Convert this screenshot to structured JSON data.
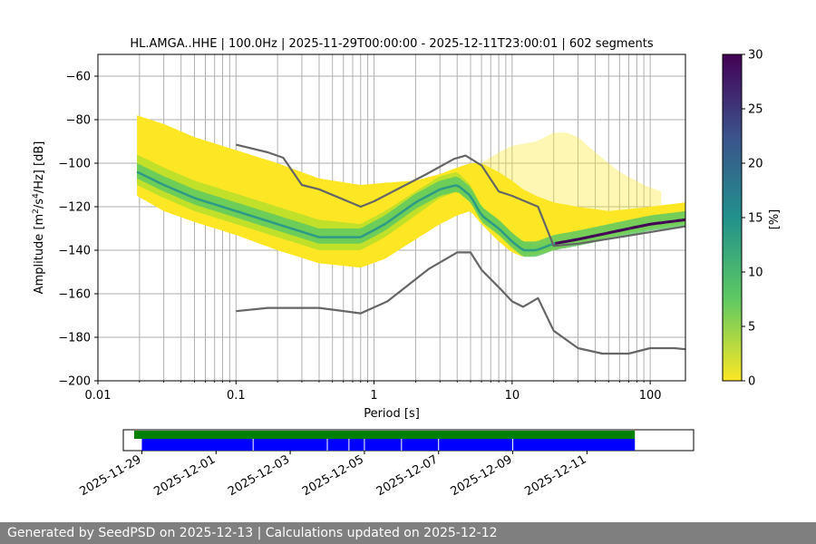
{
  "title": "HL.AMGA..HHE | 100.0Hz | 2025-11-29T00:00:00 - 2025-12-11T23:00:01 | 602 segments",
  "footer": "Generated by SeedPSD on 2025-12-13 | Calculations updated on 2025-12-12",
  "colors": {
    "noise_model": "#666666",
    "grid": "#b0b0b0",
    "availability_green": "#008000",
    "availability_blue": "#0000ff",
    "footer_bg": "#7f7f7f",
    "viridis_r": [
      "#fde725",
      "#5ec962",
      "#21918c",
      "#3b528b",
      "#440154"
    ]
  },
  "chart_data": [
    {
      "type": "heatmap",
      "title": "HL.AMGA..HHE | 100.0Hz | 2025-11-29T00:00:00 - 2025-12-11T23:00:01 | 602 segments",
      "xlabel": "Period [s]",
      "ylabel_main": "Amplitude [m",
      "ylabel_sup1": "2",
      "ylabel_mid": "/s",
      "ylabel_sup2": "4",
      "ylabel_end": "/Hz] [dB]",
      "x_scale": "log",
      "xlim": [
        0.01,
        180
      ],
      "ylim": [
        -200,
        -50
      ],
      "x_ticks": [
        0.01,
        0.1,
        1,
        10,
        100
      ],
      "x_tick_labels": [
        "0.01",
        "0.1",
        "1",
        "10",
        "100"
      ],
      "y_ticks": [
        -200,
        -180,
        -160,
        -140,
        -120,
        -100,
        -80,
        -60
      ],
      "y_tick_labels": [
        "−200",
        "−180",
        "−160",
        "−140",
        "−120",
        "−100",
        "−80",
        "−60"
      ],
      "grid": true,
      "period_x_start": 0.0192,
      "density_band": {
        "period": [
          0.0192,
          0.03,
          0.05,
          0.1,
          0.2,
          0.4,
          0.8,
          1.2,
          2,
          3,
          4,
          5,
          6,
          8,
          10,
          12,
          15,
          20,
          30,
          50,
          100,
          180
        ],
        "outer_upper": [
          -78,
          -82,
          -88,
          -94,
          -100,
          -107,
          -110,
          -109,
          -108,
          -105,
          -102,
          -100,
          -100,
          -104,
          -108,
          -112,
          -115,
          -118,
          -120,
          -122,
          -120,
          -118
        ],
        "outer_lower": [
          -115,
          -122,
          -127,
          -133,
          -140,
          -146,
          -148,
          -144,
          -135,
          -128,
          -124,
          -122,
          -128,
          -136,
          -141,
          -143,
          -142,
          -140,
          -137,
          -134,
          -130,
          -128
        ],
        "core_upper": [
          -96,
          -102,
          -108,
          -114,
          -120,
          -126,
          -128,
          -122,
          -113,
          -106,
          -104,
          -110,
          -120,
          -126,
          -132,
          -136,
          -138,
          -136,
          -134,
          -131,
          -127,
          -125
        ],
        "core_lower": [
          -110,
          -116,
          -122,
          -128,
          -134,
          -140,
          -140,
          -134,
          -124,
          -116,
          -113,
          -118,
          -126,
          -132,
          -138,
          -142,
          -141,
          -139,
          -136,
          -133,
          -129,
          -127
        ],
        "mode_line": [
          -104,
          -110,
          -116,
          -122,
          -128,
          -134,
          -134,
          -128,
          -118,
          -112,
          -110,
          -115,
          -124,
          -130,
          -136,
          -140,
          -140,
          -137,
          -135,
          -132,
          -128,
          -126
        ]
      },
      "scatter_cloud": {
        "period": [
          6,
          8,
          10,
          15,
          20,
          25,
          30,
          40,
          60,
          90,
          120
        ],
        "upper": [
          -100,
          -95,
          -92,
          -90,
          -86,
          -86,
          -88,
          -95,
          -104,
          -110,
          -113
        ]
      },
      "series": [
        {
          "period": [
            0.1,
            0.17,
            0.22,
            0.3,
            0.4,
            0.8,
            1,
            2.4,
            3.8,
            4.6,
            6,
            8,
            10,
            15.4,
            20,
            30,
            60,
            180
          ],
          "values": [
            -91.5,
            -95,
            -97.5,
            -110,
            -112,
            -120,
            -117.5,
            -105,
            -98,
            -96.5,
            -101,
            -113,
            -115,
            -120,
            -138,
            -137,
            -134,
            -129
          ]
        },
        {
          "period": [
            0.1,
            0.17,
            0.4,
            0.8,
            1.25,
            2.5,
            4,
            5,
            6,
            8,
            10,
            12,
            15.4,
            20,
            30,
            45,
            70,
            100,
            150,
            180
          ],
          "values": [
            -168,
            -166.5,
            -166.5,
            -169,
            -163.5,
            -148.5,
            -141,
            -141,
            -149,
            -157,
            -163.5,
            -166,
            -162,
            -177,
            -185,
            -187.5,
            -187.5,
            -185,
            -185,
            -185.5
          ]
        }
      ]
    },
    {
      "type": "heatmap",
      "title": "",
      "zlim": [
        0,
        30
      ],
      "z_ticks": [
        0,
        5,
        10,
        15,
        20,
        25,
        30
      ],
      "z_tick_labels": [
        "0",
        "5",
        "10",
        "15",
        "20",
        "25",
        "30"
      ],
      "zlabel": "[%]"
    },
    {
      "type": "bar",
      "title": "",
      "x_tick_labels": [
        "2025-11-29",
        "2025-12-01",
        "2025-12-03",
        "2025-12-05",
        "2025-12-07",
        "2025-12-09",
        "2025-12-11"
      ],
      "xlim": [
        "2025-11-28T12:00",
        "2025-12-13T21:00"
      ],
      "series": [
        {
          "name": "",
          "color": "green",
          "start": "2025-11-28T19:00",
          "end": "2025-12-12T07:00"
        },
        {
          "name": "",
          "color": "blue",
          "start": "2025-11-29T00:00",
          "end": "2025-12-12T07:00",
          "gaps": [
            "2025-12-02T00:00",
            "2025-12-04T00:00",
            "2025-12-04T14:00",
            "2025-12-05T00:00",
            "2025-12-06T00:00",
            "2025-12-07T00:00",
            "2025-12-09T00:00"
          ]
        }
      ]
    }
  ]
}
